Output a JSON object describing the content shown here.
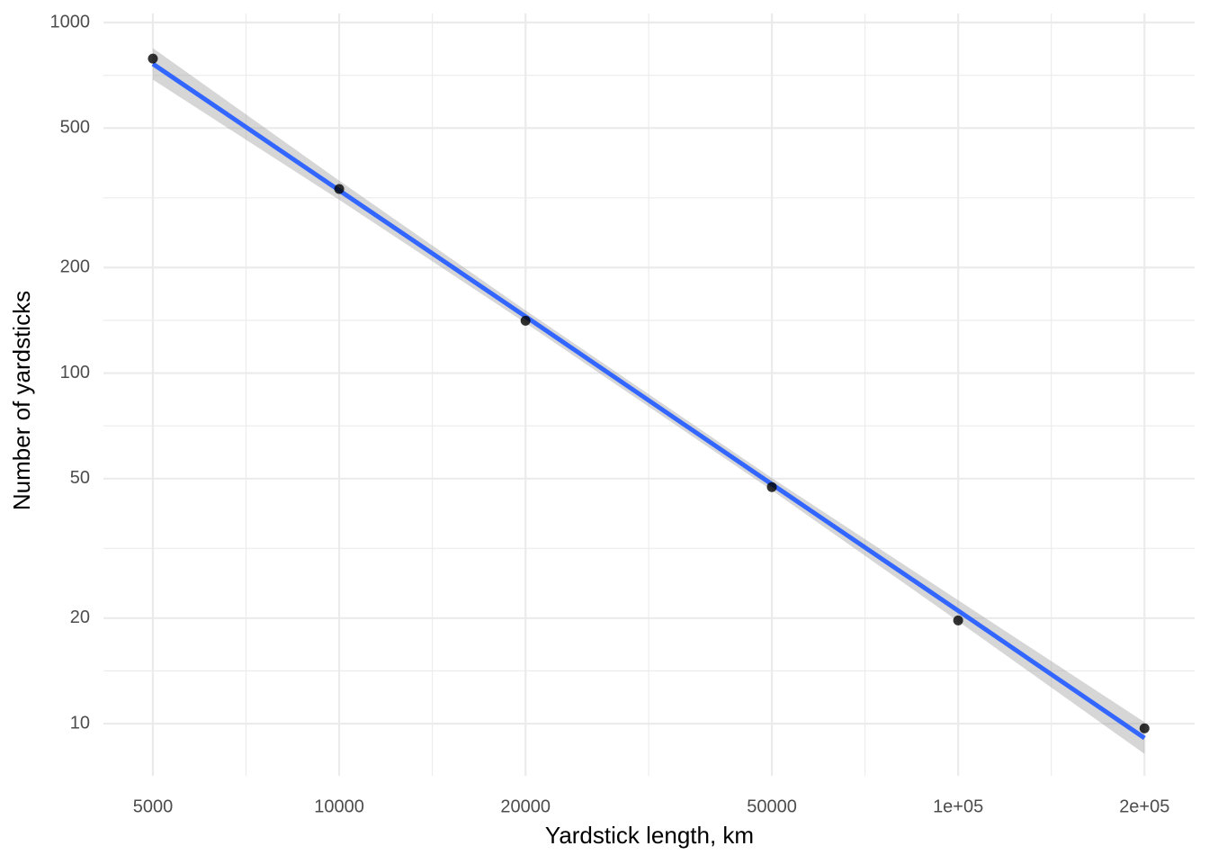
{
  "chart_data": {
    "type": "scatter",
    "x_label": "Yardstick length, km",
    "y_label": "Number of yardsticks",
    "log_x": true,
    "log_y": true,
    "grid": true,
    "xlim": [
      4160,
      241000
    ],
    "ylim": [
      7.1,
      1061
    ],
    "xticks": [
      5000,
      10000,
      20000,
      50000,
      {
        "value": 100000,
        "label": "1e+05"
      },
      {
        "value": 200000,
        "label": "2e+05"
      }
    ],
    "yticks": [
      10,
      20,
      50,
      100,
      200,
      500,
      1000
    ],
    "points": {
      "color": "#000000",
      "x": [
        5000,
        10000,
        20000,
        50000,
        100000,
        200000
      ],
      "values": [
        789,
        335,
        141,
        47.3,
        19.7,
        9.7
      ]
    },
    "fit": {
      "color": "#3366ff",
      "band_color": "#999999",
      "x": [
        5000,
        10000,
        20000,
        50000,
        100000,
        200000
      ],
      "values": [
        762,
        332,
        145,
        48.2,
        21.0,
        9.1
      ],
      "lower": [
        687,
        312,
        139,
        46.3,
        19.6,
        8.2
      ],
      "upper": [
        845,
        354,
        151,
        50.2,
        22.5,
        10.1
      ]
    }
  }
}
